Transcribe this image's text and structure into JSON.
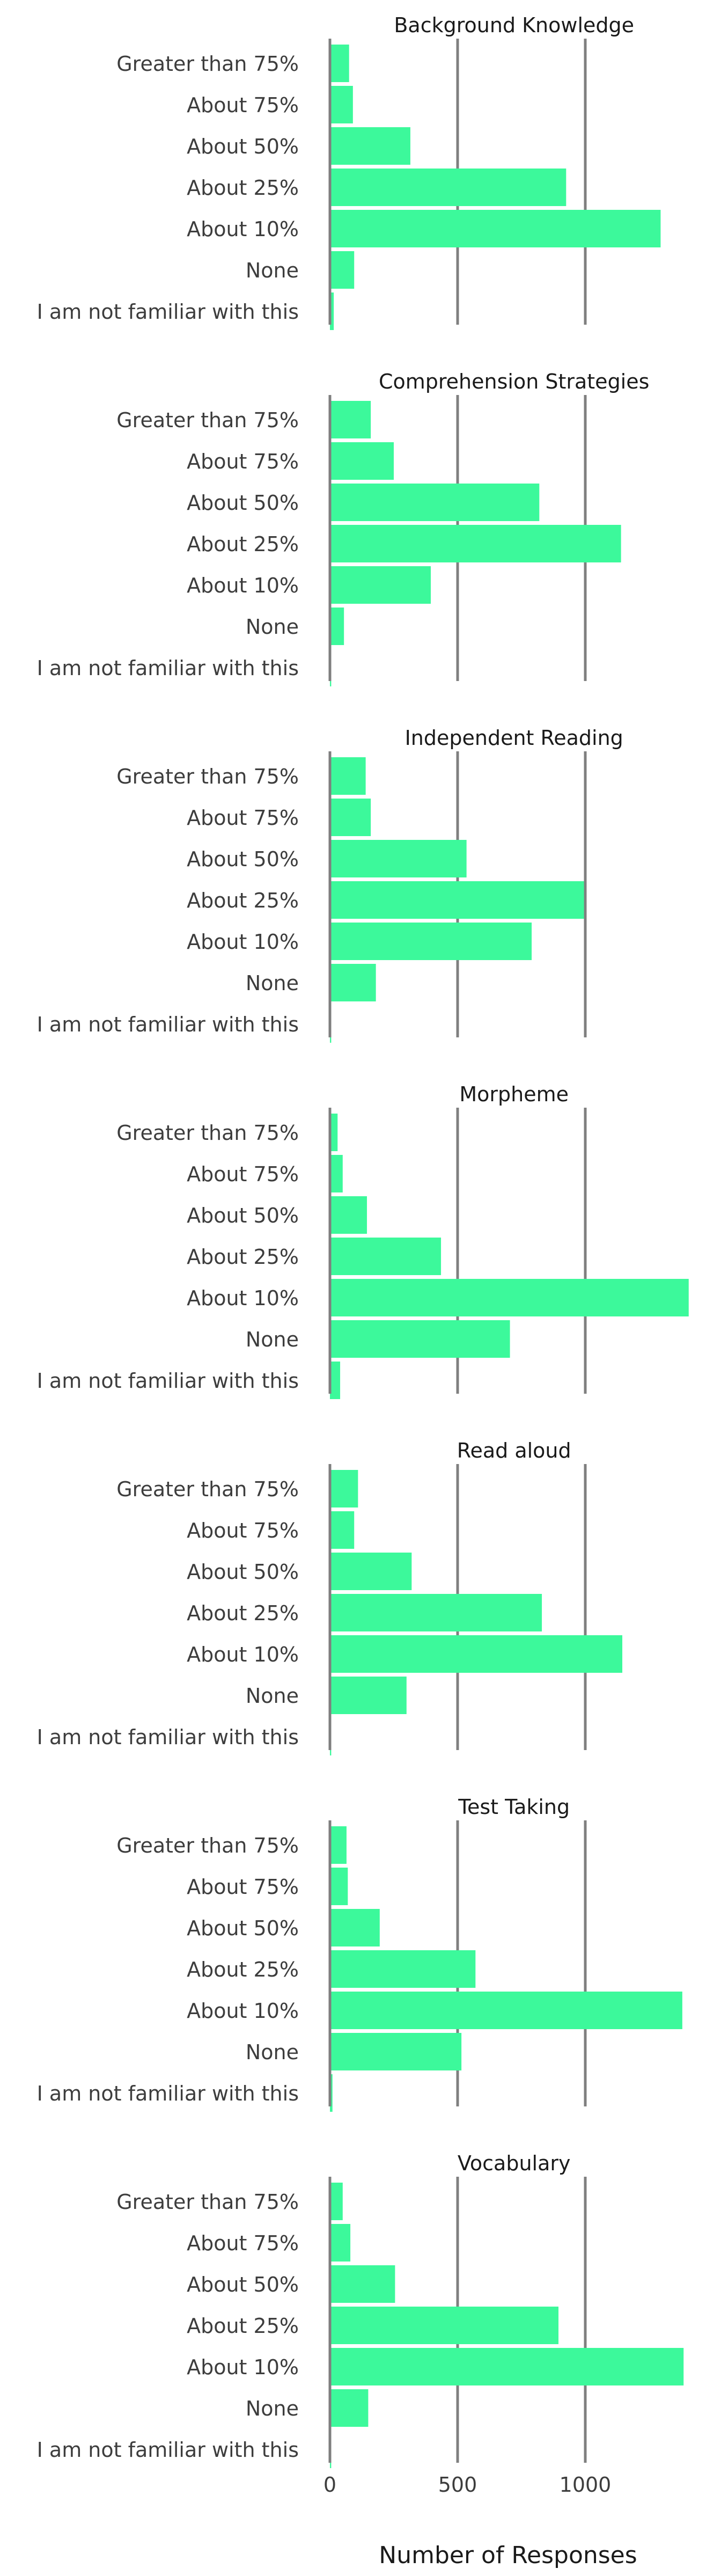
{
  "chart_data": {
    "type": "bar",
    "orientation": "horizontal",
    "xlabel": "Number of Responses",
    "xlim": [
      0,
      1400
    ],
    "xticks": [
      "0",
      "500",
      "1000"
    ],
    "x_tick_values": [
      0,
      500,
      1000
    ],
    "grid": "vertical lines at x ticks",
    "bar_color": "#3cf99b",
    "grid_color": "#7f7f7f",
    "categories": [
      "Greater than 75%",
      "About 75%",
      "About 50%",
      "About 25%",
      "About 10%",
      "None",
      "I am not familiar with this"
    ],
    "panels": [
      {
        "title": "Background Knowledge",
        "values": [
          75,
          90,
          315,
          925,
          1295,
          95,
          15
        ]
      },
      {
        "title": "Comprehension Strategies",
        "values": [
          160,
          250,
          820,
          1140,
          395,
          55,
          5
        ]
      },
      {
        "title": "Independent Reading",
        "values": [
          140,
          160,
          535,
          995,
          790,
          180,
          5
        ]
      },
      {
        "title": "Morpheme",
        "values": [
          30,
          50,
          145,
          435,
          1405,
          705,
          40
        ]
      },
      {
        "title": "Read aloud",
        "values": [
          110,
          95,
          320,
          830,
          1145,
          300,
          5
        ]
      },
      {
        "title": "Test Taking",
        "values": [
          65,
          70,
          195,
          570,
          1380,
          515,
          10
        ]
      },
      {
        "title": "Vocabulary",
        "values": [
          50,
          80,
          255,
          895,
          1385,
          150,
          5
        ]
      }
    ]
  }
}
